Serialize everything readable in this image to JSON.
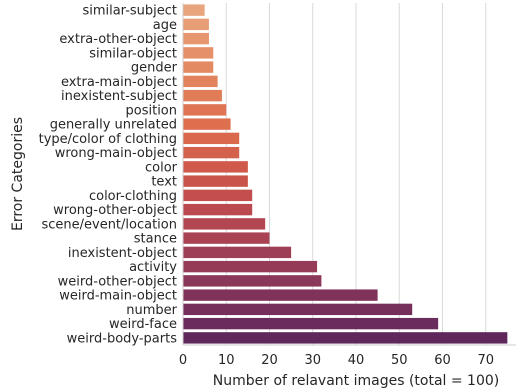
{
  "chart_data": {
    "type": "bar",
    "orientation": "horizontal",
    "xlabel": "Number of relavant images (total = 100)",
    "ylabel": "Error Categories",
    "xlim": [
      0,
      77
    ],
    "xticks": [
      0,
      10,
      20,
      30,
      40,
      50,
      60,
      70
    ],
    "grid": "vertical",
    "colormap": "flare",
    "categories": [
      "similar-subject",
      "age",
      "extra-other-object",
      "similar-object",
      "gender",
      "extra-main-object",
      "inexistent-subject",
      "position",
      "generally unrelated",
      "type/color of clothing",
      "wrong-main-object",
      "color",
      "text",
      "color-clothing",
      "wrong-other-object",
      "scene/event/location",
      "stance",
      "inexistent-object",
      "activity",
      "weird-other-object",
      "weird-main-object",
      "number",
      "weird-face",
      "weird-body-parts"
    ],
    "values": [
      5,
      6,
      6,
      7,
      7,
      8,
      9,
      10,
      11,
      13,
      13,
      15,
      15,
      16,
      16,
      19,
      20,
      25,
      31,
      32,
      45,
      53,
      59,
      75
    ],
    "colors": [
      "#e8a47c",
      "#e79d76",
      "#e6976f",
      "#e59069",
      "#e38a63",
      "#e2835e",
      "#e17c58",
      "#df7553",
      "#dd6f4f",
      "#d9684c",
      "#d4614b",
      "#cf5a4b",
      "#c9544b",
      "#c24e4d",
      "#ba4a4f",
      "#b24651",
      "#a94253",
      "#9f3f55",
      "#953b57",
      "#8b3759",
      "#80335a",
      "#762f5b",
      "#6b2b5c",
      "#60275c"
    ]
  }
}
